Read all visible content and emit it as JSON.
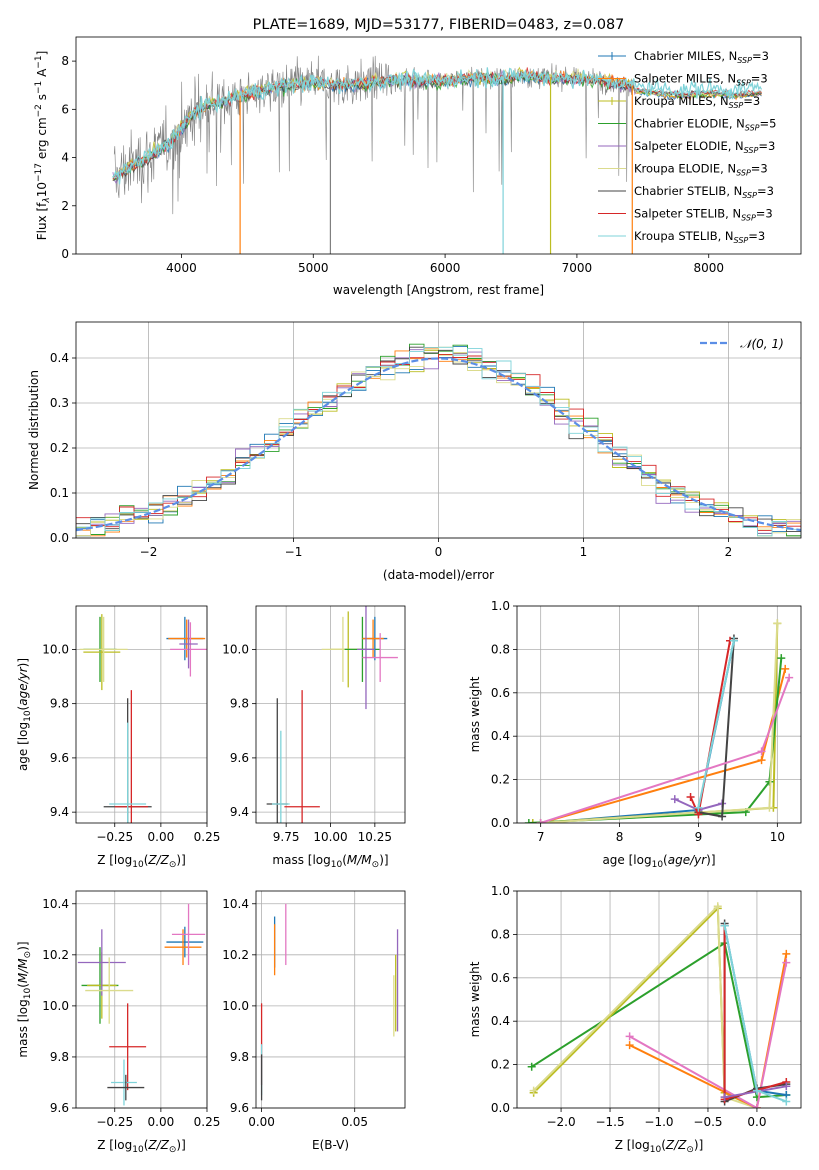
{
  "chart_data": [
    {
      "id": "spectrum",
      "type": "line",
      "title": "PLATE=1689, MJD=53177, FIBERID=0483, z=0.087",
      "xlabel": "wavelength [Angstrom, rest frame]",
      "ylabel": "Flux [f_λ 10^-17 erg cm^-2 s^-1 A^-1]",
      "ylabel_parts": [
        "Flux [f",
        "λ",
        "10",
        "−17",
        " erg cm",
        "−2",
        " s",
        "−1",
        " A",
        "−1",
        "]"
      ],
      "xlim": [
        3200,
        8700
      ],
      "ylim": [
        0,
        9
      ],
      "xticks": [
        4000,
        5000,
        6000,
        7000,
        8000
      ],
      "yticks": [
        0,
        2,
        4,
        6,
        8
      ],
      "legend_position": "upper right",
      "legend": [
        {
          "pre": "Chabrier MILES, N",
          "sub": "SSP",
          "post": "=3",
          "color": "#1f77b4"
        },
        {
          "pre": "Salpeter MILES, N",
          "sub": "SSP",
          "post": "=3",
          "color": "#ff7f0e"
        },
        {
          "pre": "Kroupa MILES, N",
          "sub": "SSP",
          "post": "=3",
          "color": "#bcbd22"
        },
        {
          "pre": "Chabrier ELODIE, N",
          "sub": "SSP",
          "post": "=5",
          "color": "#2ca02c"
        },
        {
          "pre": "Salpeter ELODIE, N",
          "sub": "SSP",
          "post": "=3",
          "color": "#9467bd"
        },
        {
          "pre": "Kroupa ELODIE, N",
          "sub": "SSP",
          "post": "=3",
          "color": "#dbdb8d"
        },
        {
          "pre": "Chabrier STELIB, N",
          "sub": "SSP",
          "post": "=3",
          "color": "#444444"
        },
        {
          "pre": "Salpeter STELIB, N",
          "sub": "SSP",
          "post": "=3",
          "color": "#d62728"
        },
        {
          "pre": "Kroupa STELIB, N",
          "sub": "SSP",
          "post": "=3",
          "color": "#7fd3d9"
        }
      ],
      "data_color": "#808080",
      "continuum": {
        "x": [
          3500,
          3600,
          3700,
          3800,
          3900,
          4000,
          4100,
          4200,
          4300,
          4400,
          4600,
          4800,
          5000,
          5200,
          5400,
          5600,
          5800,
          6000,
          6200,
          6400,
          6600,
          6800,
          7000,
          7200,
          7400,
          7600,
          7800,
          8000,
          8200,
          8400
        ],
        "y": [
          3.2,
          3.6,
          3.9,
          4.2,
          4.6,
          5.2,
          5.9,
          6.2,
          6.3,
          6.5,
          6.8,
          7.0,
          7.1,
          7.0,
          7.1,
          7.2,
          7.2,
          7.2,
          7.3,
          7.3,
          7.4,
          7.3,
          7.3,
          7.2,
          7.0,
          6.9,
          6.8,
          6.9,
          6.8,
          6.9
        ]
      },
      "spikes": [
        {
          "x": 4445,
          "color": "#ff7f0e"
        },
        {
          "x": 5130,
          "color": "#808080"
        },
        {
          "x": 6440,
          "color": "#7fd3d9"
        },
        {
          "x": 6800,
          "color": "#bcbd22"
        },
        {
          "x": 7420,
          "color": "#ff7f0e"
        }
      ]
    },
    {
      "id": "residuals",
      "type": "line",
      "xlabel": "(data-model)/error",
      "ylabel": "Normed distribution",
      "xlim": [
        -2.5,
        2.5
      ],
      "ylim": [
        0,
        0.48
      ],
      "xticks": [
        -2,
        -1,
        0,
        1,
        2
      ],
      "xtick_labels": [
        "−2",
        "−1",
        "0",
        "1",
        "2"
      ],
      "yticks": [
        0.0,
        0.1,
        0.2,
        0.3,
        0.4
      ],
      "ytick_labels": [
        "0.0",
        "0.1",
        "0.2",
        "0.3",
        "0.4"
      ],
      "legend": [
        {
          "label": "𝒩(0, 1)",
          "color": "#5b8ee6"
        }
      ],
      "legend_position": "upper right",
      "bin_width": 0.1,
      "series_colors": [
        "#1f77b4",
        "#ff7f0e",
        "#bcbd22",
        "#2ca02c",
        "#9467bd",
        "#dbdb8d",
        "#444444",
        "#d62728",
        "#7fd3d9"
      ]
    },
    {
      "id": "age_vs_z",
      "type": "scatter",
      "xlabel": "Z [log10(Z/Z⊙)]",
      "ylabel": "age [log10(age/yr)]",
      "xlim": [
        -0.46,
        0.25
      ],
      "ylim": [
        9.36,
        10.16
      ],
      "xticks": [
        -0.25,
        0.0,
        0.25
      ],
      "xtick_labels": [
        "−0.25",
        "0.00",
        "0.25"
      ],
      "yticks": [
        9.4,
        9.6,
        9.8,
        10.0
      ],
      "ytick_labels": [
        "9.4",
        "9.6",
        "9.8",
        "10.0"
      ],
      "points": [
        {
          "x": -0.33,
          "y": 10.0,
          "xerr": 0.09,
          "yerr": 0.12,
          "color": "#2ca02c"
        },
        {
          "x": -0.32,
          "y": 9.99,
          "xerr": 0.1,
          "yerr": 0.14,
          "color": "#bcbd22"
        },
        {
          "x": -0.31,
          "y": 10.0,
          "xerr": 0.13,
          "yerr": 0.12,
          "color": "#dbdb8d"
        },
        {
          "x": 0.13,
          "y": 10.04,
          "xerr": 0.1,
          "yerr": 0.08,
          "color": "#1f77b4"
        },
        {
          "x": 0.14,
          "y": 10.04,
          "xerr": 0.1,
          "yerr": 0.07,
          "color": "#ff7f0e"
        },
        {
          "x": 0.16,
          "y": 10.0,
          "xerr": 0.11,
          "yerr": 0.1,
          "color": "#e377c2"
        },
        {
          "x": 0.15,
          "y": 10.02,
          "xerr": 0.05,
          "yerr": 0.09,
          "color": "#9467bd"
        },
        {
          "x": -0.18,
          "y": 9.42,
          "xerr": 0.13,
          "yerr": 0.4,
          "color": "#444444"
        },
        {
          "x": -0.16,
          "y": 9.42,
          "xerr": 0.09,
          "yerr": 0.43,
          "color": "#d62728"
        },
        {
          "x": -0.18,
          "y": 9.43,
          "xerr": 0.1,
          "yerr": 0.3,
          "color": "#7fd3d9"
        }
      ]
    },
    {
      "id": "age_vs_mass",
      "type": "scatter",
      "xlabel": "mass [log10(M/M⊙)]",
      "xlim": [
        9.58,
        10.42
      ],
      "ylim": [
        9.36,
        10.16
      ],
      "xticks": [
        9.75,
        10.0,
        10.25
      ],
      "xtick_labels": [
        "9.75",
        "10.00",
        "10.25"
      ],
      "yticks": [
        9.4,
        9.6,
        9.8,
        10.0
      ],
      "ytick_labels": [
        "9.4",
        "9.6",
        "9.8",
        "10.0"
      ],
      "points": [
        {
          "x": 10.1,
          "y": 10.0,
          "xerr": 0.1,
          "yerr": 0.14,
          "color": "#bcbd22"
        },
        {
          "x": 10.07,
          "y": 10.0,
          "xerr": 0.12,
          "yerr": 0.12,
          "color": "#dbdb8d"
        },
        {
          "x": 10.18,
          "y": 10.0,
          "xerr": 0.1,
          "yerr": 0.12,
          "color": "#2ca02c"
        },
        {
          "x": 10.25,
          "y": 10.04,
          "xerr": 0.07,
          "yerr": 0.08,
          "color": "#1f77b4"
        },
        {
          "x": 10.24,
          "y": 10.04,
          "xerr": 0.06,
          "yerr": 0.07,
          "color": "#ff7f0e"
        },
        {
          "x": 10.28,
          "y": 9.97,
          "xerr": 0.1,
          "yerr": 0.09,
          "color": "#e377c2"
        },
        {
          "x": 10.2,
          "y": 10.0,
          "xerr": 0.05,
          "yerr": 0.22,
          "color": "#9467bd"
        },
        {
          "x": 9.7,
          "y": 9.43,
          "xerr": 0.06,
          "yerr": 0.39,
          "color": "#444444"
        },
        {
          "x": 9.84,
          "y": 9.42,
          "xerr": 0.1,
          "yerr": 0.43,
          "color": "#d62728"
        },
        {
          "x": 9.72,
          "y": 9.43,
          "xerr": 0.05,
          "yerr": 0.27,
          "color": "#7fd3d9"
        }
      ]
    },
    {
      "id": "weight_vs_age",
      "type": "line",
      "xlabel": "age [log10(age/yr)]",
      "ylabel": "mass weight",
      "xlim": [
        6.7,
        10.3
      ],
      "ylim": [
        0,
        1.0
      ],
      "xticks": [
        7,
        8,
        9,
        10
      ],
      "xtick_labels": [
        "7",
        "8",
        "9",
        "10"
      ],
      "yticks": [
        0,
        0.2,
        0.4,
        0.6,
        0.8,
        1.0
      ],
      "ytick_labels": [
        "0.0",
        "0.2",
        "0.4",
        "0.6",
        "0.8",
        "1.0"
      ],
      "series": [
        {
          "color": "#1f77b4",
          "x": [
            7.0,
            9.0,
            9.45
          ],
          "y": [
            0.0,
            0.06,
            0.84
          ]
        },
        {
          "color": "#ff7f0e",
          "x": [
            7.0,
            9.8,
            10.1
          ],
          "y": [
            0.0,
            0.29,
            0.71
          ]
        },
        {
          "color": "#bcbd22",
          "x": [
            6.9,
            9.95,
            10.0
          ],
          "y": [
            0.0,
            0.07,
            0.92
          ]
        },
        {
          "color": "#2ca02c",
          "x": [
            6.85,
            9.6,
            9.9,
            10.05
          ],
          "y": [
            0.0,
            0.05,
            0.19,
            0.76
          ]
        },
        {
          "color": "#9467bd",
          "x": [
            8.7,
            9.0,
            9.3
          ],
          "y": [
            0.11,
            0.06,
            0.09
          ]
        },
        {
          "color": "#dbdb8d",
          "x": [
            7.0,
            9.9,
            10.0
          ],
          "y": [
            0.0,
            0.07,
            0.92
          ]
        },
        {
          "color": "#444444",
          "x": [
            9.0,
            9.3,
            9.45
          ],
          "y": [
            0.05,
            0.03,
            0.85
          ]
        },
        {
          "color": "#d62728",
          "x": [
            8.9,
            9.0,
            9.4
          ],
          "y": [
            0.12,
            0.04,
            0.84
          ]
        },
        {
          "color": "#7fd3d9",
          "x": [
            9.0,
            9.45
          ],
          "y": [
            0.07,
            0.84
          ]
        },
        {
          "color": "#e377c2",
          "x": [
            7.0,
            9.8,
            10.15
          ],
          "y": [
            0.0,
            0.33,
            0.67
          ]
        }
      ]
    },
    {
      "id": "mass_vs_z",
      "type": "scatter",
      "xlabel": "Z [log10(Z/Z⊙)]",
      "ylabel": "mass [log10(M/M⊙)]",
      "xlim": [
        -0.46,
        0.25
      ],
      "ylim": [
        9.6,
        10.45
      ],
      "xticks": [
        -0.25,
        0.0,
        0.25
      ],
      "xtick_labels": [
        "−0.25",
        "0.00",
        "0.25"
      ],
      "yticks": [
        9.6,
        9.8,
        10.0,
        10.2,
        10.4
      ],
      "ytick_labels": [
        "9.6",
        "9.8",
        "10.0",
        "10.2",
        "10.4"
      ],
      "points": [
        {
          "x": -0.33,
          "y": 10.08,
          "xerr": 0.1,
          "yerr": 0.15,
          "color": "#2ca02c"
        },
        {
          "x": -0.32,
          "y": 10.08,
          "xerr": 0.08,
          "yerr": 0.13,
          "color": "#bcbd22"
        },
        {
          "x": -0.32,
          "y": 10.17,
          "xerr": 0.13,
          "yerr": 0.13,
          "color": "#9467bd"
        },
        {
          "x": -0.28,
          "y": 10.06,
          "xerr": 0.13,
          "yerr": 0.13,
          "color": "#dbdb8d"
        },
        {
          "x": 0.13,
          "y": 10.25,
          "xerr": 0.1,
          "yerr": 0.06,
          "color": "#1f77b4"
        },
        {
          "x": 0.12,
          "y": 10.23,
          "xerr": 0.1,
          "yerr": 0.07,
          "color": "#ff7f0e"
        },
        {
          "x": 0.15,
          "y": 10.28,
          "xerr": 0.09,
          "yerr": 0.12,
          "color": "#e377c2"
        },
        {
          "x": -0.18,
          "y": 9.84,
          "xerr": 0.1,
          "yerr": 0.17,
          "color": "#d62728"
        },
        {
          "x": -0.2,
          "y": 9.7,
          "xerr": 0.07,
          "yerr": 0.09,
          "color": "#7fd3d9"
        },
        {
          "x": -0.19,
          "y": 9.68,
          "xerr": 0.1,
          "yerr": 0.05,
          "color": "#444444"
        }
      ]
    },
    {
      "id": "mass_vs_ebv",
      "type": "scatter",
      "xlabel": "E(B-V)",
      "xlim": [
        -0.003,
        0.077
      ],
      "ylim": [
        9.6,
        10.45
      ],
      "xticks": [
        0.0,
        0.05
      ],
      "xtick_labels": [
        "0.00",
        "0.05"
      ],
      "yticks": [
        9.6,
        9.8,
        10.0,
        10.2,
        10.4
      ],
      "ytick_labels": [
        "9.6",
        "9.8",
        "10.0",
        "10.2",
        "10.4"
      ],
      "points": [
        {
          "x": 0.0,
          "y": 9.85,
          "yerr": 0.16,
          "color": "#d62728"
        },
        {
          "x": 0.0,
          "y": 9.75,
          "yerr": 0.1,
          "color": "#7fd3d9"
        },
        {
          "x": 0.0,
          "y": 9.72,
          "yerr": 0.09,
          "color": "#444444"
        },
        {
          "x": 0.007,
          "y": 10.25,
          "yerr": 0.1,
          "color": "#1f77b4"
        },
        {
          "x": 0.007,
          "y": 10.22,
          "yerr": 0.1,
          "color": "#ff7f0e"
        },
        {
          "x": 0.013,
          "y": 10.28,
          "yerr": 0.12,
          "color": "#e377c2"
        },
        {
          "x": 0.073,
          "y": 10.1,
          "yerr": 0.2,
          "color": "#9467bd"
        },
        {
          "x": 0.072,
          "y": 10.05,
          "yerr": 0.15,
          "color": "#bcbd22"
        },
        {
          "x": 0.071,
          "y": 10.0,
          "yerr": 0.12,
          "color": "#dbdb8d"
        }
      ]
    },
    {
      "id": "weight_vs_z",
      "type": "line",
      "xlabel": "Z [log10(Z/Z⊙)]",
      "ylabel": "mass weight",
      "xlim": [
        -2.45,
        0.45
      ],
      "ylim": [
        0,
        1.0
      ],
      "xticks": [
        -2.0,
        -1.5,
        -1.0,
        -0.5,
        0.0
      ],
      "xtick_labels": [
        "−2.0",
        "−1.5",
        "−1.0",
        "−0.5",
        "0.0"
      ],
      "yticks": [
        0,
        0.2,
        0.4,
        0.6,
        0.8,
        1.0
      ],
      "ytick_labels": [
        "0.0",
        "0.2",
        "0.4",
        "0.6",
        "0.8",
        "1.0"
      ],
      "series": [
        {
          "color": "#2ca02c",
          "x": [
            -2.3,
            -0.33,
            0.0,
            0.3
          ],
          "y": [
            0.19,
            0.76,
            0.05,
            0.06
          ]
        },
        {
          "color": "#bcbd22",
          "x": [
            -2.28,
            -0.4,
            -0.33,
            0.0
          ],
          "y": [
            0.07,
            0.92,
            0.07,
            0.0
          ]
        },
        {
          "color": "#dbdb8d",
          "x": [
            -2.28,
            -0.4,
            -0.33,
            0.0
          ],
          "y": [
            0.08,
            0.93,
            0.05,
            0.0
          ]
        },
        {
          "color": "#ff7f0e",
          "x": [
            -1.3,
            0.0,
            0.3
          ],
          "y": [
            0.29,
            0.0,
            0.71
          ]
        },
        {
          "color": "#e377c2",
          "x": [
            -1.3,
            0.0,
            0.3
          ],
          "y": [
            0.33,
            0.0,
            0.67
          ]
        },
        {
          "color": "#1f77b4",
          "x": [
            -0.33,
            0.0,
            0.3
          ],
          "y": [
            0.84,
            0.08,
            0.06
          ]
        },
        {
          "color": "#444444",
          "x": [
            -0.33,
            -0.33,
            0.0,
            0.3
          ],
          "y": [
            0.85,
            0.03,
            0.09,
            0.11
          ]
        },
        {
          "color": "#d62728",
          "x": [
            -0.33,
            -0.33,
            0.3
          ],
          "y": [
            0.84,
            0.04,
            0.12
          ]
        },
        {
          "color": "#9467bd",
          "x": [
            -0.33,
            0.3
          ],
          "y": [
            0.05,
            0.1
          ]
        },
        {
          "color": "#7fd3d9",
          "x": [
            -0.33,
            0.0,
            0.3
          ],
          "y": [
            0.84,
            0.08,
            0.03
          ]
        }
      ]
    }
  ]
}
